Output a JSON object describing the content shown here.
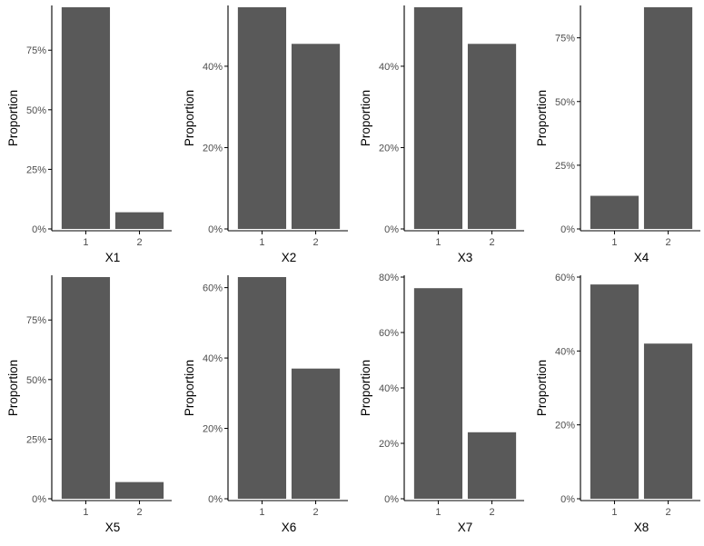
{
  "colors": {
    "bar": "#595959",
    "axis": "#000000",
    "tick_text": "#4d4d4d",
    "background": "#ffffff"
  },
  "chart_data": [
    {
      "type": "bar",
      "xlabel": "X1",
      "ylabel": "Proportion",
      "categories": [
        "1",
        "2"
      ],
      "values": [
        0.93,
        0.07
      ],
      "ylim": [
        0,
        0.93
      ],
      "yticks": [
        0,
        0.25,
        0.5,
        0.75
      ],
      "ytick_labels": [
        "0%",
        "25%",
        "50%",
        "75%"
      ],
      "grid": false
    },
    {
      "type": "bar",
      "xlabel": "X2",
      "ylabel": "Proportion",
      "categories": [
        "1",
        "2"
      ],
      "values": [
        0.545,
        0.455
      ],
      "ylim": [
        0,
        0.545
      ],
      "yticks": [
        0,
        0.2,
        0.4
      ],
      "ytick_labels": [
        "0%",
        "20%",
        "40%"
      ],
      "grid": false
    },
    {
      "type": "bar",
      "xlabel": "X3",
      "ylabel": "Proportion",
      "categories": [
        "1",
        "2"
      ],
      "values": [
        0.545,
        0.455
      ],
      "ylim": [
        0,
        0.545
      ],
      "yticks": [
        0,
        0.2,
        0.4
      ],
      "ytick_labels": [
        "0%",
        "20%",
        "40%"
      ],
      "grid": false
    },
    {
      "type": "bar",
      "xlabel": "X4",
      "ylabel": "Proportion",
      "categories": [
        "1",
        "2"
      ],
      "values": [
        0.13,
        0.87
      ],
      "ylim": [
        0,
        0.87
      ],
      "yticks": [
        0,
        0.25,
        0.5,
        0.75
      ],
      "ytick_labels": [
        "0%",
        "25%",
        "50%",
        "75%"
      ],
      "grid": false
    },
    {
      "type": "bar",
      "xlabel": "X5",
      "ylabel": "Proportion",
      "categories": [
        "1",
        "2"
      ],
      "values": [
        0.93,
        0.07
      ],
      "ylim": [
        0,
        0.93
      ],
      "yticks": [
        0,
        0.25,
        0.5,
        0.75
      ],
      "ytick_labels": [
        "0%",
        "25%",
        "50%",
        "75%"
      ],
      "grid": false
    },
    {
      "type": "bar",
      "xlabel": "X6",
      "ylabel": "Proportion",
      "categories": [
        "1",
        "2"
      ],
      "values": [
        0.63,
        0.37
      ],
      "ylim": [
        0,
        0.63
      ],
      "yticks": [
        0,
        0.2,
        0.4,
        0.6
      ],
      "ytick_labels": [
        "0%",
        "20%",
        "40%",
        "60%"
      ],
      "grid": false
    },
    {
      "type": "bar",
      "xlabel": "X7",
      "ylabel": "Proportion",
      "categories": [
        "1",
        "2"
      ],
      "values": [
        0.76,
        0.24
      ],
      "ylim": [
        0,
        0.8
      ],
      "yticks": [
        0,
        0.2,
        0.4,
        0.6,
        0.8
      ],
      "ytick_labels": [
        "0%",
        "20%",
        "40%",
        "60%",
        "80%"
      ],
      "grid": false
    },
    {
      "type": "bar",
      "xlabel": "X8",
      "ylabel": "Proportion",
      "categories": [
        "1",
        "2"
      ],
      "values": [
        0.58,
        0.42
      ],
      "ylim": [
        0,
        0.6
      ],
      "yticks": [
        0,
        0.2,
        0.4,
        0.6
      ],
      "ytick_labels": [
        "0%",
        "20%",
        "40%",
        "60%"
      ],
      "grid": false
    }
  ]
}
